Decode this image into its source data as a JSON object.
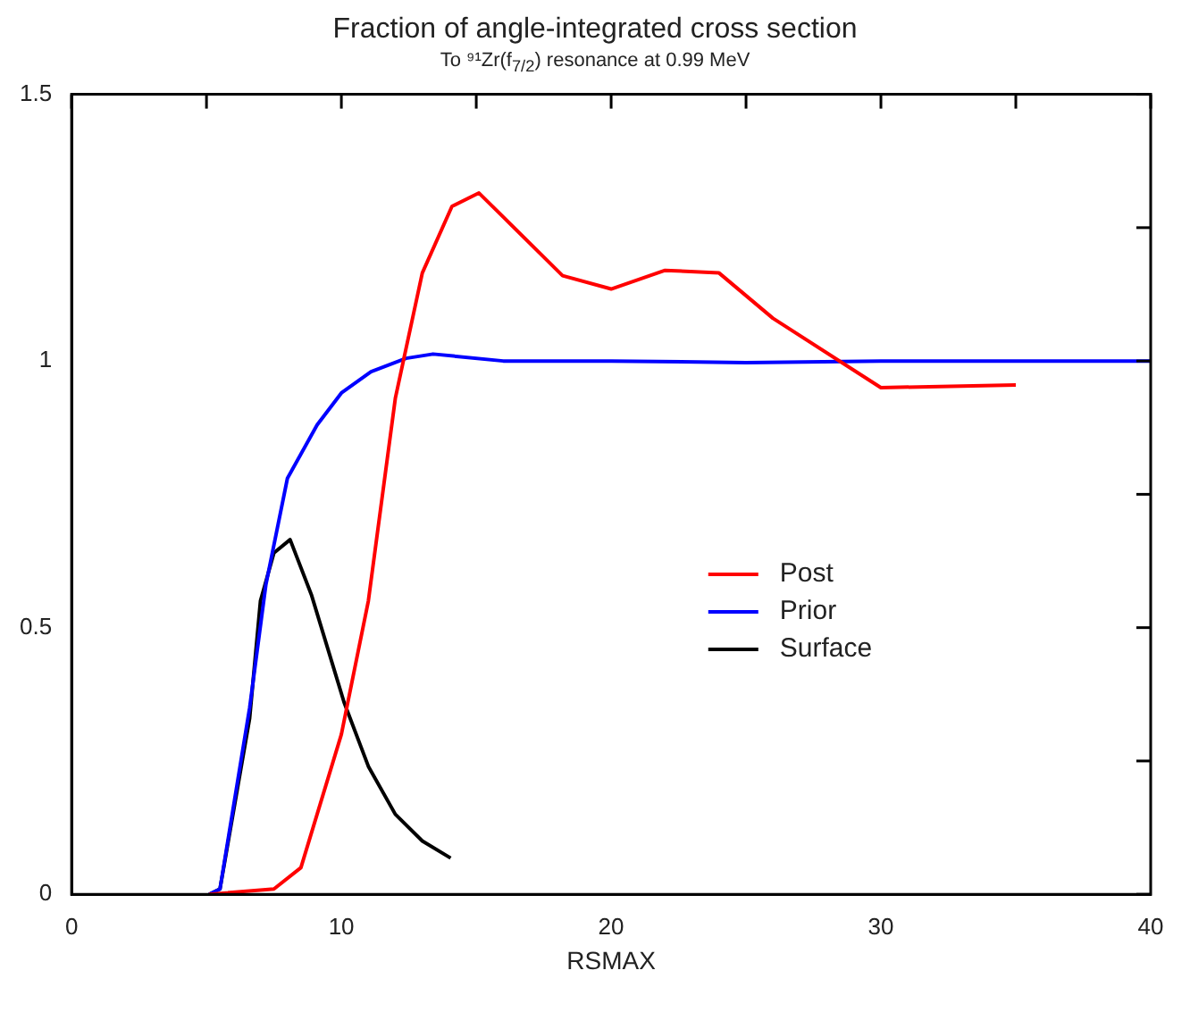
{
  "chart_data": {
    "type": "line",
    "title": "Fraction of angle-integrated cross section",
    "subtitle": "To ⁹¹Zr(f$_{7/2}$) resonance at 0.99 MeV",
    "xlabel": "RSMAX",
    "xlim": [
      0,
      40
    ],
    "ylim": [
      0,
      1.5
    ],
    "xticks": [
      0,
      {
        "value": 5,
        "label": null
      },
      10,
      {
        "value": 15,
        "label": null
      },
      20,
      {
        "value": 25,
        "label": null
      },
      30,
      {
        "value": 35,
        "label": null
      },
      40
    ],
    "yticks": [
      0,
      {
        "value": 0.25,
        "label": null
      },
      0.5,
      {
        "value": 0.75,
        "label": null
      },
      1,
      {
        "value": 1.25,
        "label": null
      },
      1.5
    ],
    "grid": false,
    "legend": "right",
    "marker": "none",
    "line_style": "solid",
    "series": [
      {
        "name": "Post",
        "color": "#ff0000",
        "x": [
          5.1,
          7.5,
          8.5,
          10,
          11,
          12,
          13,
          14.1,
          15.1,
          16,
          18.2,
          20,
          22,
          24,
          26,
          30,
          35
        ],
        "values": [
          0,
          0.01,
          0.05,
          0.3,
          0.55,
          0.93,
          1.165,
          1.29,
          1.315,
          1.27,
          1.16,
          1.135,
          1.17,
          1.165,
          1.08,
          0.95,
          0.955
        ]
      },
      {
        "name": "Prior",
        "color": "#0000ff",
        "x": [
          5.1,
          5.5,
          6.6,
          7.2,
          8,
          9.1,
          10,
          11.1,
          12.4,
          13.4,
          16,
          20,
          25,
          30,
          35,
          40
        ],
        "values": [
          0,
          0.01,
          0.35,
          0.58,
          0.78,
          0.88,
          0.94,
          0.98,
          1.005,
          1.013,
          1.0,
          1.0,
          0.997,
          1.0,
          1.0,
          1.0
        ]
      },
      {
        "name": "Surface",
        "color": "#000000",
        "x": [
          5.1,
          5.5,
          6.6,
          7.0,
          7.5,
          8.1,
          8.9,
          10.1,
          11,
          12,
          13,
          14.05
        ],
        "values": [
          0,
          0.01,
          0.33,
          0.55,
          0.64,
          0.665,
          0.56,
          0.36,
          0.24,
          0.15,
          0.1,
          0.068
        ]
      }
    ]
  }
}
